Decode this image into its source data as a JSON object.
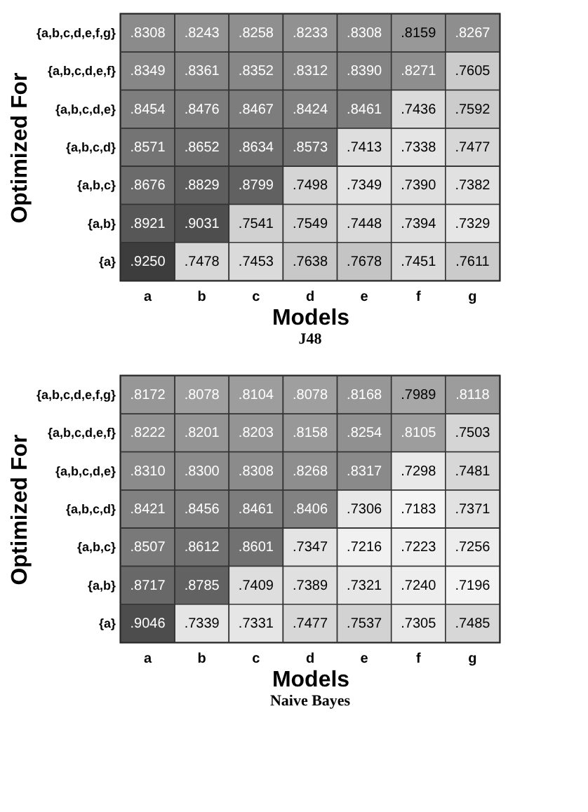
{
  "chart_data": [
    {
      "type": "heatmap",
      "title": "J48",
      "xlabel": "Models",
      "ylabel": "Optimized For",
      "categories": [
        "a",
        "b",
        "c",
        "d",
        "e",
        "f",
        "g"
      ],
      "y_categories": [
        "{a,b,c,d,e,f,g}",
        "{a,b,c,d,e,f}",
        "{a,b,c,d,e}",
        "{a,b,c,d}",
        "{a,b,c}",
        "{a,b}",
        "{a}"
      ],
      "cells": [
        [
          0.8308,
          0.8243,
          0.8258,
          0.8233,
          0.8308,
          0.8159,
          0.8267
        ],
        [
          0.8349,
          0.8361,
          0.8352,
          0.8312,
          0.839,
          0.8271,
          0.7605
        ],
        [
          0.8454,
          0.8476,
          0.8467,
          0.8424,
          0.8461,
          0.7436,
          0.7592
        ],
        [
          0.8571,
          0.8652,
          0.8634,
          0.8573,
          0.7413,
          0.7338,
          0.7477
        ],
        [
          0.8676,
          0.8829,
          0.8799,
          0.7498,
          0.7349,
          0.739,
          0.7382
        ],
        [
          0.8921,
          0.9031,
          0.7541,
          0.7549,
          0.7448,
          0.7394,
          0.7329
        ],
        [
          0.925,
          0.7478,
          0.7453,
          0.7638,
          0.7678,
          0.7451,
          0.7611
        ]
      ],
      "cell_labels": [
        [
          ".8308",
          ".8243",
          ".8258",
          ".8233",
          ".8308",
          ".8159",
          ".8267"
        ],
        [
          ".8349",
          ".8361",
          ".8352",
          ".8312",
          ".8390",
          ".8271",
          ".7605"
        ],
        [
          ".8454",
          ".8476",
          ".8467",
          ".8424",
          ".8461",
          ".7436",
          ".7592"
        ],
        [
          ".8571",
          ".8652",
          ".8634",
          ".8573",
          ".7413",
          ".7338",
          ".7477"
        ],
        [
          ".8676",
          ".8829",
          ".8799",
          ".7498",
          ".7349",
          ".7390",
          ".7382"
        ],
        [
          ".8921",
          ".9031",
          ".7541",
          ".7549",
          ".7448",
          ".7394",
          ".7329"
        ],
        [
          ".9250",
          ".7478",
          ".7453",
          ".7638",
          ".7678",
          ".7451",
          ".7611"
        ]
      ]
    },
    {
      "type": "heatmap",
      "title": "Naive Bayes",
      "xlabel": "Models",
      "ylabel": "Optimized For",
      "categories": [
        "a",
        "b",
        "c",
        "d",
        "e",
        "f",
        "g"
      ],
      "y_categories": [
        "{a,b,c,d,e,f,g}",
        "{a,b,c,d,e,f}",
        "{a,b,c,d,e}",
        "{a,b,c,d}",
        "{a,b,c}",
        "{a,b}",
        "{a}"
      ],
      "cells": [
        [
          0.8172,
          0.8078,
          0.8104,
          0.8078,
          0.8168,
          0.7989,
          0.8118
        ],
        [
          0.8222,
          0.8201,
          0.8203,
          0.8158,
          0.8254,
          0.8105,
          0.7503
        ],
        [
          0.831,
          0.83,
          0.8308,
          0.8268,
          0.8317,
          0.7298,
          0.7481
        ],
        [
          0.8421,
          0.8456,
          0.8461,
          0.8406,
          0.7306,
          0.7183,
          0.7371
        ],
        [
          0.8507,
          0.8612,
          0.8601,
          0.7347,
          0.7216,
          0.7223,
          0.7256
        ],
        [
          0.8717,
          0.8785,
          0.7409,
          0.7389,
          0.7321,
          0.724,
          0.7196
        ],
        [
          0.9046,
          0.7339,
          0.7331,
          0.7477,
          0.7537,
          0.7305,
          0.7485
        ]
      ],
      "cell_labels": [
        [
          ".8172",
          ".8078",
          ".8104",
          ".8078",
          ".8168",
          ".7989",
          ".8118"
        ],
        [
          ".8222",
          ".8201",
          ".8203",
          ".8158",
          ".8254",
          ".8105",
          ".7503"
        ],
        [
          ".8310",
          ".8300",
          ".8308",
          ".8268",
          ".8317",
          ".7298",
          ".7481"
        ],
        [
          ".8421",
          ".8456",
          ".8461",
          ".8406",
          ".7306",
          ".7183",
          ".7371"
        ],
        [
          ".8507",
          ".8612",
          ".8601",
          ".7347",
          ".7216",
          ".7223",
          ".7256"
        ],
        [
          ".8717",
          ".8785",
          ".7409",
          ".7389",
          ".7321",
          ".7240",
          ".7196"
        ],
        [
          ".9046",
          ".7339",
          ".7331",
          ".7477",
          ".7537",
          ".7305",
          ".7485"
        ]
      ]
    }
  ]
}
